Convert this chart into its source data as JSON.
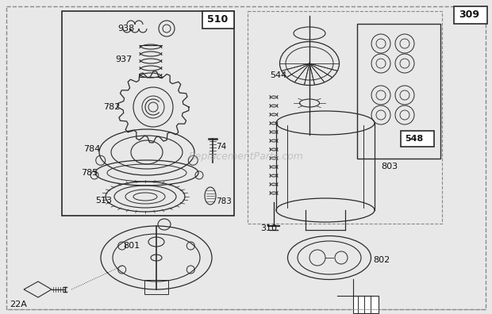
{
  "bg_color": "#e8e8e8",
  "lc": "#2a2a2a",
  "watermark": "ReplacementParts.com",
  "fig_w": 6.2,
  "fig_h": 3.96,
  "dpi": 100
}
